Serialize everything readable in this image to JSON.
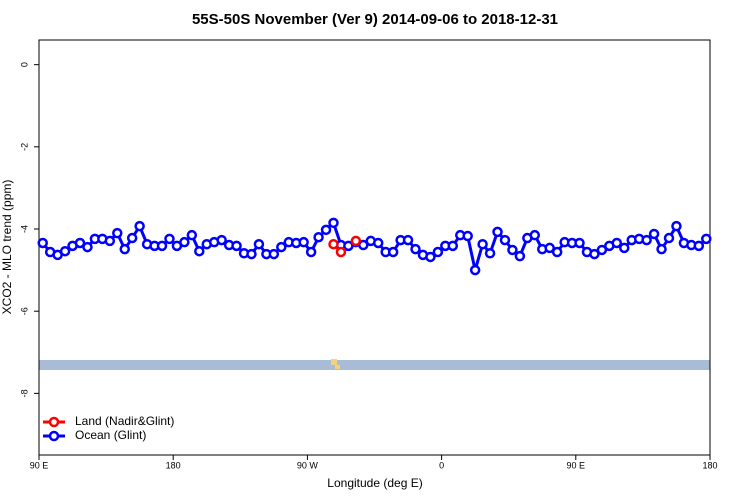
{
  "chart_data": {
    "type": "line",
    "title": "55S-50S November (Ver 9)   2014-09-06 to 2018-12-31",
    "x_label": "Longitude (deg E)",
    "y_label": "XCO2 - MLO trend (ppm)",
    "xlim": [
      90,
      540
    ],
    "xticks": [
      {
        "value": 90,
        "label": "90 E"
      },
      {
        "value": 180,
        "label": "180"
      },
      {
        "value": 270,
        "label": "90 W"
      },
      {
        "value": 360,
        "label": "0"
      },
      {
        "value": 450,
        "label": "90 E"
      },
      {
        "value": 540,
        "label": "180"
      }
    ],
    "ylim": [
      -9.5,
      0.6
    ],
    "yticks": [
      0,
      -2,
      -4,
      -6,
      -8
    ],
    "legend": "bottom-left",
    "series": [
      {
        "name": "Land (Nadir&Glint)",
        "color": "#ff0000",
        "x": [
          287.5,
          292.5,
          297.5,
          302.5
        ],
        "values": [
          -4.37,
          -4.56,
          null,
          -4.29
        ]
      },
      {
        "name": "Ocean (Glint)",
        "color": "#0000ff",
        "x": [
          92.5,
          97.5,
          102.5,
          107.5,
          112.5,
          117.5,
          122.5,
          127.5,
          132.5,
          137.5,
          142.5,
          147.5,
          152.5,
          157.5,
          162.5,
          167.5,
          172.5,
          177.5,
          182.5,
          187.5,
          192.5,
          197.5,
          202.5,
          207.5,
          212.5,
          217.5,
          222.5,
          227.5,
          232.5,
          237.5,
          242.5,
          247.5,
          252.5,
          257.5,
          262.5,
          267.5,
          272.5,
          277.5,
          282.5,
          287.5,
          292.5,
          297.5,
          302.5,
          307.5,
          312.5,
          317.5,
          322.5,
          327.5,
          332.5,
          337.5,
          342.5,
          347.5,
          352.5,
          357.5,
          362.5,
          367.5,
          372.5,
          377.5,
          382.5,
          387.5,
          392.5,
          397.5,
          402.5,
          407.5,
          412.5,
          417.5,
          422.5,
          427.5,
          432.5,
          437.5,
          442.5,
          447.5,
          452.5,
          457.5,
          462.5,
          467.5,
          472.5,
          477.5,
          482.5,
          487.5,
          492.5,
          497.5,
          502.5,
          507.5,
          512.5,
          517.5,
          522.5,
          527.5,
          532.5,
          537.5
        ],
        "values": [
          -4.34,
          -4.56,
          -4.63,
          -4.54,
          -4.41,
          -4.34,
          -4.44,
          -4.24,
          -4.24,
          -4.29,
          -4.1,
          -4.49,
          -4.22,
          -3.93,
          -4.37,
          -4.41,
          -4.41,
          -4.24,
          -4.41,
          -4.32,
          -4.15,
          -4.54,
          -4.37,
          -4.32,
          -4.27,
          -4.39,
          -4.41,
          -4.59,
          -4.61,
          -4.37,
          -4.61,
          -4.61,
          -4.44,
          -4.32,
          -4.34,
          -4.32,
          -4.56,
          -4.2,
          -4.02,
          -3.85,
          -4.39,
          -4.41,
          -4.32,
          -4.39,
          -4.29,
          -4.34,
          -4.56,
          -4.56,
          -4.27,
          -4.27,
          -4.49,
          -4.63,
          -4.68,
          -4.56,
          -4.41,
          -4.41,
          -4.15,
          -4.17,
          -5.0,
          -4.37,
          -4.59,
          -4.07,
          -4.27,
          -4.51,
          -4.66,
          -4.22,
          -4.15,
          -4.49,
          -4.46,
          -4.56,
          -4.32,
          -4.34,
          -4.34,
          -4.56,
          -4.61,
          -4.51,
          -4.41,
          -4.34,
          -4.46,
          -4.27,
          -4.24,
          -4.27,
          -4.12,
          -4.49,
          -4.22,
          -3.93,
          -4.34,
          -4.39,
          -4.41,
          -4.24
        ]
      }
    ]
  }
}
